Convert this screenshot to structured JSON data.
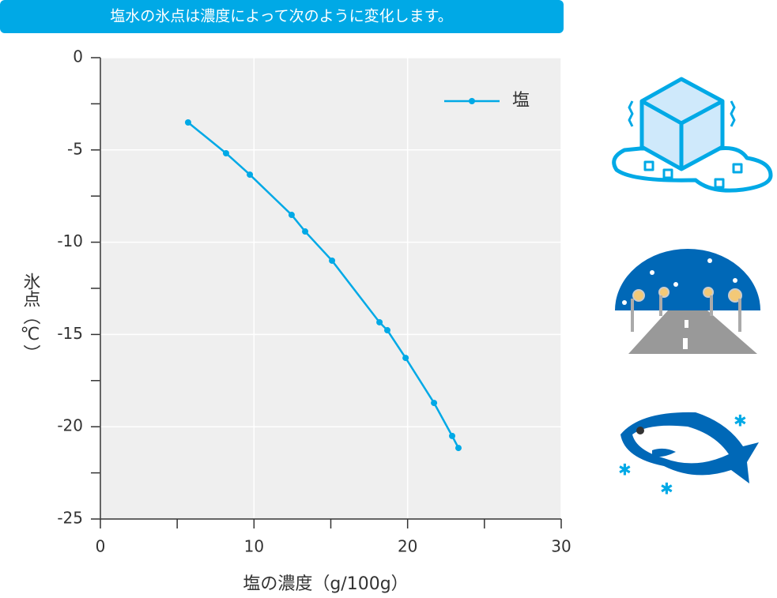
{
  "header": {
    "title": "塩水の氷点は濃度によって次のように変化します。"
  },
  "chart_data": {
    "type": "line",
    "x_label": "塩の濃度（g/100g）",
    "y_label": "氷点（℃）",
    "x": [
      5.71,
      8.18,
      9.73,
      12.45,
      13.33,
      15.08,
      18.17,
      18.68,
      19.87,
      21.72,
      22.9,
      23.31
    ],
    "series": [
      {
        "name": "塩",
        "color": "#00a9e6",
        "values": [
          -3.51,
          -5.18,
          -6.34,
          -8.52,
          -9.42,
          -11.0,
          -14.34,
          -14.77,
          -16.27,
          -18.71,
          -20.5,
          -21.15
        ]
      }
    ],
    "xlim": [
      0,
      30
    ],
    "ylim": [
      -25,
      0
    ],
    "xticks": [
      0,
      10,
      20,
      30
    ],
    "xticks_minor": [
      5,
      15,
      25
    ],
    "yticks": [
      0,
      -5,
      -10,
      -15,
      -20,
      -25
    ],
    "yticks_minor": [
      -2.5,
      -7.5,
      -12.5,
      -17.5,
      -22.5
    ],
    "grid": true,
    "legend": "upper right"
  }
}
